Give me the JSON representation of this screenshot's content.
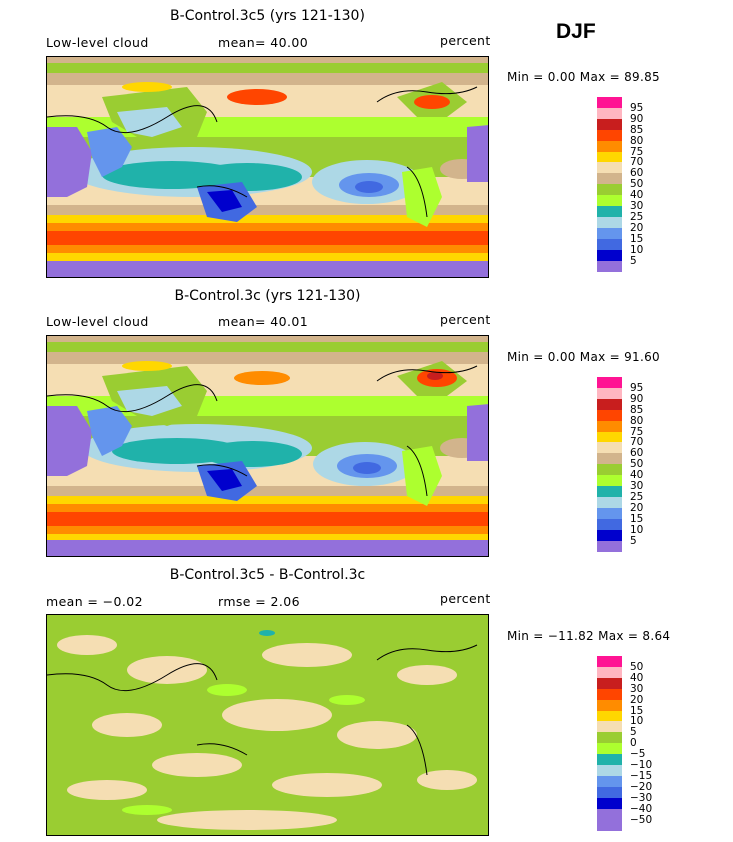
{
  "season": "DJF",
  "panels": [
    {
      "title": "B-Control.3c5 (yrs 121-130)",
      "left_label": "Low-level cloud",
      "stat_label": "mean=  40.00",
      "units": "percent",
      "minmax": "Min =    0.00 Max =   89.85",
      "kind": "abs"
    },
    {
      "title": "B-Control.3c (yrs 121-130)",
      "left_label": "Low-level cloud",
      "stat_label": "mean=  40.01",
      "units": "percent",
      "minmax": "Min =    0.00 Max =   91.60",
      "kind": "abs"
    },
    {
      "title": "B-Control.3c5 - B-Control.3c",
      "left_label": "mean =  −0.02",
      "stat_label": "rmse =   2.06",
      "units": "percent",
      "minmax": "Min = −11.82 Max =    8.64",
      "kind": "diff"
    }
  ],
  "legend_abs": {
    "labels": [
      "95",
      "90",
      "85",
      "80",
      "75",
      "70",
      "60",
      "50",
      "40",
      "30",
      "25",
      "20",
      "15",
      "10",
      "5"
    ],
    "colors": [
      "#ff1493",
      "#ffb6c1",
      "#c81e1e",
      "#ff4500",
      "#ff8c00",
      "#ffd700",
      "#f5deb3",
      "#d2b48c",
      "#9acd32",
      "#adff2f",
      "#20b2aa",
      "#add8e6",
      "#6495ed",
      "#4169e1",
      "#0000cd",
      "#9370db"
    ]
  },
  "legend_diff": {
    "labels": [
      "50",
      "40",
      "30",
      "20",
      "15",
      "10",
      "5",
      "0",
      "−5",
      "−10",
      "−15",
      "−20",
      "−30",
      "−40",
      "−50"
    ],
    "colors": [
      "#ff1493",
      "#ffb6c1",
      "#c81e1e",
      "#ff4500",
      "#ff8c00",
      "#ffd700",
      "#f5deb3",
      "#9acd32",
      "#adff2f",
      "#20b2aa",
      "#add8e6",
      "#6495ed",
      "#4169e1",
      "#0000cd",
      "#9370db",
      "#9370db"
    ]
  }
}
